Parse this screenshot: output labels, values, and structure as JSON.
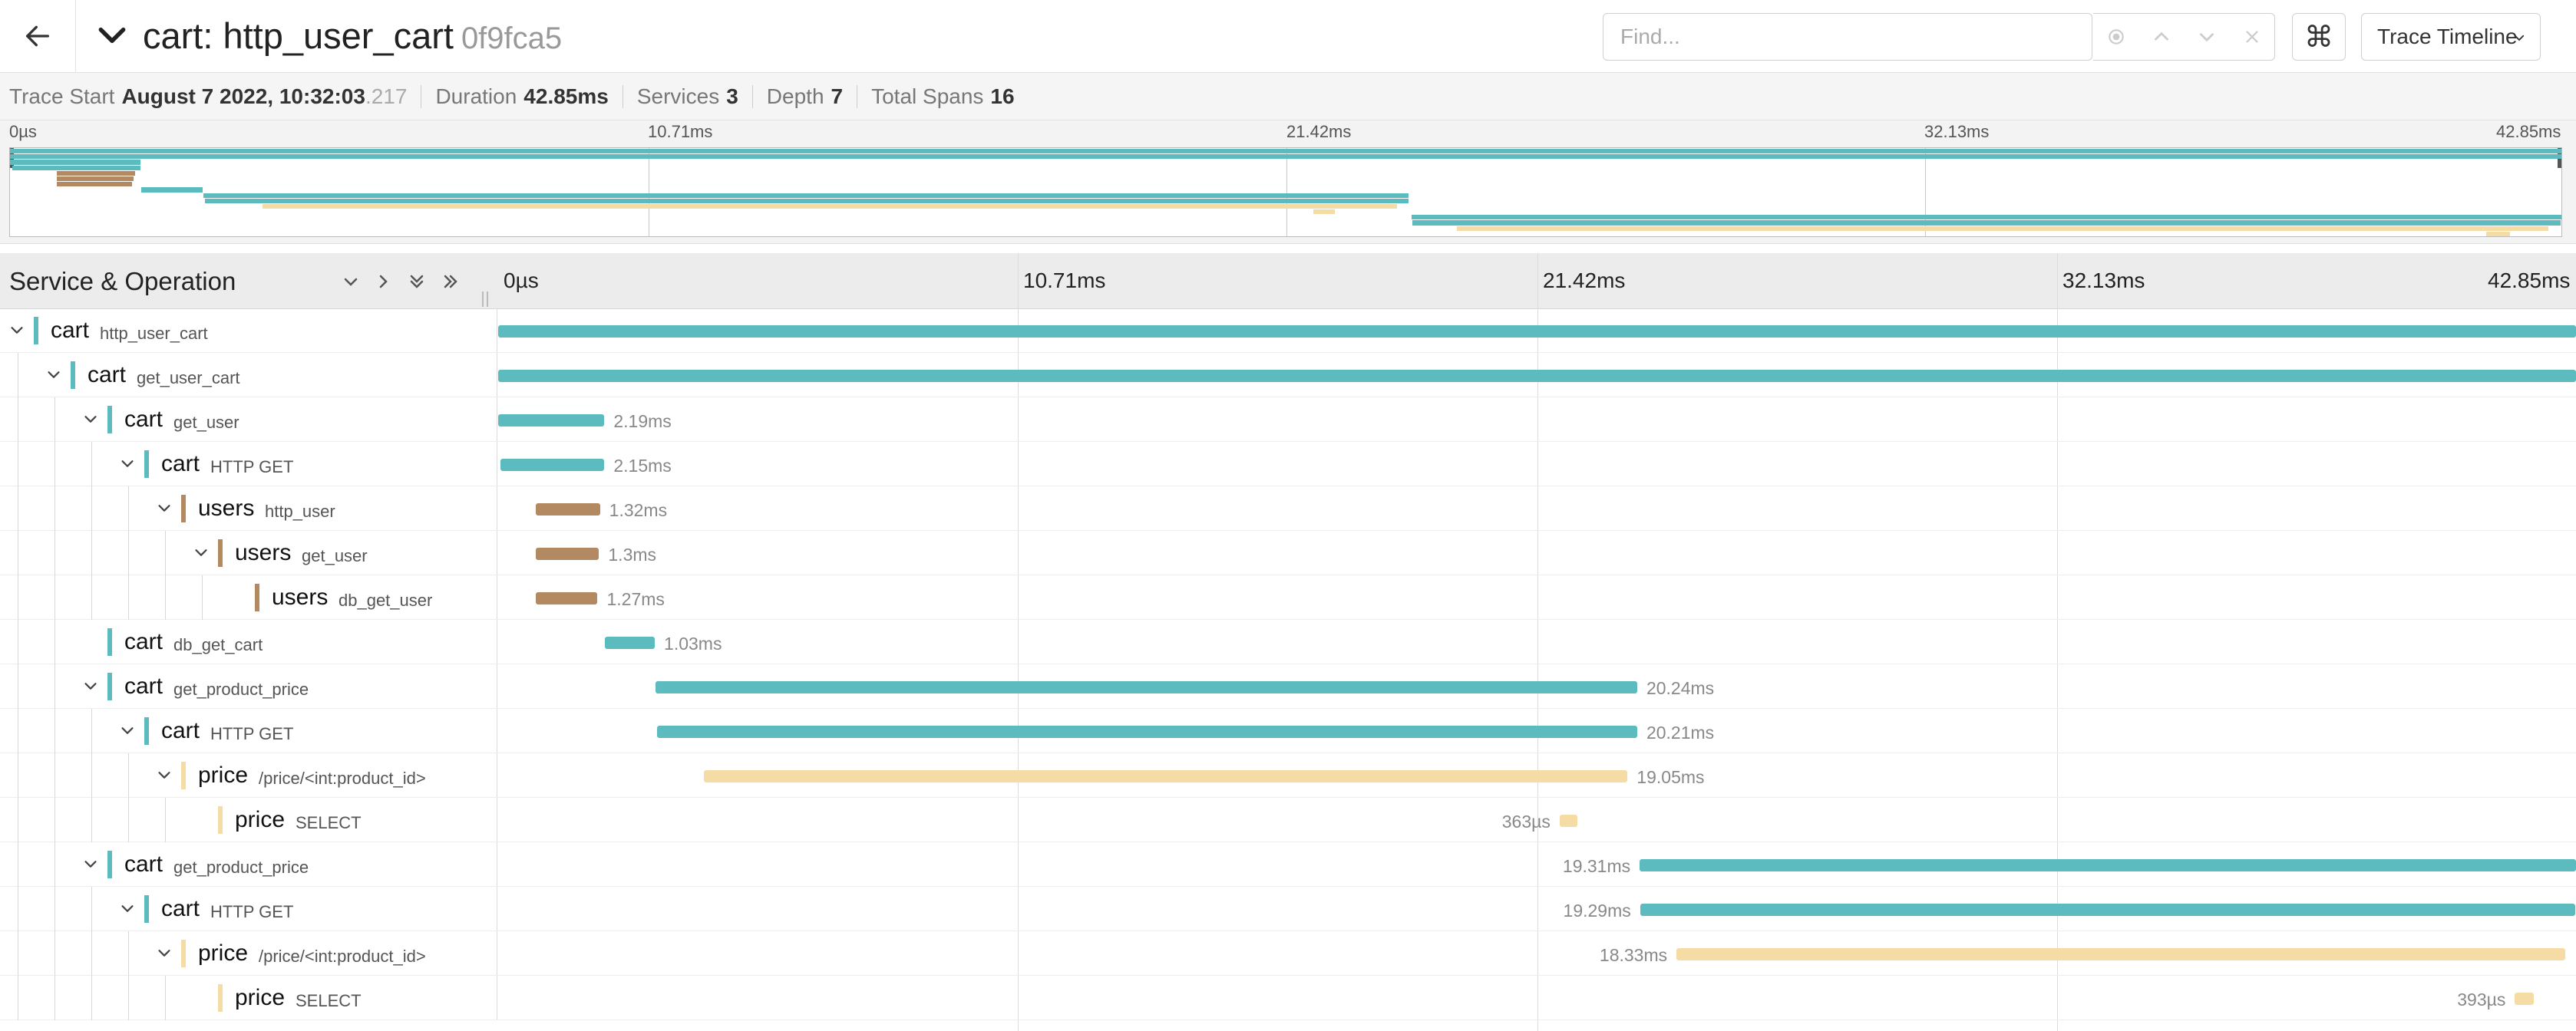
{
  "header": {
    "service": "cart",
    "operation": "http_user_cart",
    "trace_id": "0f9fca5",
    "find_placeholder": "Find...",
    "cmd_symbol": "⌘",
    "view_mode": "Trace Timeline"
  },
  "summary": {
    "trace_start_label": "Trace Start",
    "trace_start_value": "August 7 2022, 10:32:03",
    "trace_start_ms": ".217",
    "duration_label": "Duration",
    "duration_value": "42.85ms",
    "services_label": "Services",
    "services_value": "3",
    "depth_label": "Depth",
    "depth_value": "7",
    "total_spans_label": "Total Spans",
    "total_spans_value": "16"
  },
  "timeline": {
    "column_title": "Service & Operation",
    "ticks": [
      "0µs",
      "10.71ms",
      "21.42ms",
      "32.13ms",
      "42.85ms"
    ]
  },
  "colors": {
    "cart": "#5bbbbf",
    "users": "#b38962",
    "price": "#f5dca5"
  },
  "spans": [
    {
      "service": "cart",
      "operation": "http_user_cart",
      "depth": 0,
      "expandable": true,
      "start": 0,
      "duration": 42.85,
      "duration_label": ""
    },
    {
      "service": "cart",
      "operation": "get_user_cart",
      "depth": 1,
      "expandable": true,
      "start": 0,
      "duration": 42.85,
      "duration_label": ""
    },
    {
      "service": "cart",
      "operation": "get_user",
      "depth": 2,
      "expandable": true,
      "start": 0,
      "duration": 2.19,
      "duration_label": "2.19ms"
    },
    {
      "service": "cart",
      "operation": "HTTP GET",
      "depth": 3,
      "expandable": true,
      "start": 0.04,
      "duration": 2.15,
      "duration_label": "2.15ms"
    },
    {
      "service": "users",
      "operation": "http_user",
      "depth": 4,
      "expandable": true,
      "start": 0.78,
      "duration": 1.32,
      "duration_label": "1.32ms"
    },
    {
      "service": "users",
      "operation": "get_user",
      "depth": 5,
      "expandable": true,
      "start": 0.78,
      "duration": 1.3,
      "duration_label": "1.3ms"
    },
    {
      "service": "users",
      "operation": "db_get_user",
      "depth": 6,
      "expandable": false,
      "start": 0.78,
      "duration": 1.27,
      "duration_label": "1.27ms"
    },
    {
      "service": "cart",
      "operation": "db_get_cart",
      "depth": 2,
      "expandable": false,
      "start": 2.2,
      "duration": 1.03,
      "duration_label": "1.03ms"
    },
    {
      "service": "cart",
      "operation": "get_product_price",
      "depth": 2,
      "expandable": true,
      "start": 3.25,
      "duration": 20.24,
      "duration_label": "20.24ms"
    },
    {
      "service": "cart",
      "operation": "HTTP GET",
      "depth": 3,
      "expandable": true,
      "start": 3.28,
      "duration": 20.21,
      "duration_label": "20.21ms"
    },
    {
      "service": "price",
      "operation": "/price/<int:product_id>",
      "depth": 4,
      "expandable": true,
      "start": 4.24,
      "duration": 19.05,
      "duration_label": "19.05ms"
    },
    {
      "service": "price",
      "operation": "SELECT",
      "depth": 5,
      "expandable": false,
      "start": 21.89,
      "duration": 0.363,
      "duration_label": "363µs",
      "label_left": true
    },
    {
      "service": "cart",
      "operation": "get_product_price",
      "depth": 2,
      "expandable": true,
      "start": 23.54,
      "duration": 19.31,
      "duration_label": "19.31ms",
      "label_left": true
    },
    {
      "service": "cart",
      "operation": "HTTP GET",
      "depth": 3,
      "expandable": true,
      "start": 23.55,
      "duration": 19.29,
      "duration_label": "19.29ms",
      "label_left": true
    },
    {
      "service": "price",
      "operation": "/price/<int:product_id>",
      "depth": 4,
      "expandable": true,
      "start": 24.3,
      "duration": 18.33,
      "duration_label": "18.33ms",
      "label_left": true
    },
    {
      "service": "price",
      "operation": "SELECT",
      "depth": 5,
      "expandable": false,
      "start": 41.59,
      "duration": 0.393,
      "duration_label": "393µs",
      "label_left": true
    }
  ]
}
